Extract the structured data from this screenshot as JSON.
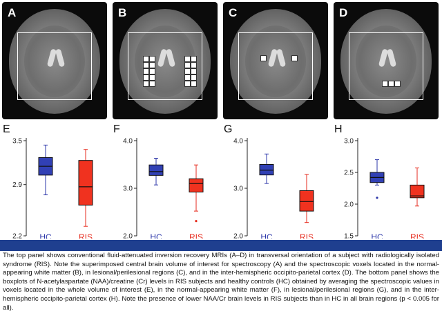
{
  "mri_panels": [
    {
      "letter": "A",
      "type": "volume"
    },
    {
      "letter": "B",
      "type": "white-matter"
    },
    {
      "letter": "C",
      "type": "lesional"
    },
    {
      "letter": "D",
      "type": "occipito-parietal"
    }
  ],
  "colors": {
    "hc": "#2b35a8",
    "ris": "#e62a1c",
    "bar": "#1f3f8f"
  },
  "chart_data": [
    {
      "type": "box",
      "panel": "E",
      "categories": [
        "HC",
        "RIS"
      ],
      "yticks": [
        "3.5",
        "2.9",
        "2.2"
      ],
      "ylim": [
        2.2,
        3.5
      ],
      "series": [
        {
          "name": "HC",
          "whisker_low": 2.76,
          "q1": 3.03,
          "median": 3.15,
          "q3": 3.27,
          "whisker_high": 3.44,
          "outliers": []
        },
        {
          "name": "RIS",
          "whisker_low": 2.33,
          "q1": 2.62,
          "median": 2.87,
          "q3": 3.23,
          "whisker_high": 3.38,
          "outliers": []
        }
      ]
    },
    {
      "type": "box",
      "panel": "F",
      "categories": [
        "HC",
        "RIS"
      ],
      "yticks": [
        "4.0",
        "3.0",
        "2.0"
      ],
      "ylim": [
        2.0,
        4.0
      ],
      "series": [
        {
          "name": "HC",
          "whisker_low": 3.07,
          "q1": 3.27,
          "median": 3.35,
          "q3": 3.49,
          "whisker_high": 3.63,
          "outliers": []
        },
        {
          "name": "RIS",
          "whisker_low": 2.52,
          "q1": 2.92,
          "median": 3.1,
          "q3": 3.2,
          "whisker_high": 3.49,
          "outliers": [
            2.31
          ]
        }
      ]
    },
    {
      "type": "box",
      "panel": "G",
      "categories": [
        "HC",
        "RIS"
      ],
      "yticks": [
        "4.0",
        "3.0",
        "2.0"
      ],
      "ylim": [
        2.0,
        4.0
      ],
      "series": [
        {
          "name": "HC",
          "whisker_low": 3.1,
          "q1": 3.28,
          "median": 3.38,
          "q3": 3.5,
          "whisker_high": 3.72,
          "outliers": []
        },
        {
          "name": "RIS",
          "whisker_low": 2.28,
          "q1": 2.52,
          "median": 2.72,
          "q3": 2.95,
          "whisker_high": 3.29,
          "outliers": []
        }
      ]
    },
    {
      "type": "box",
      "panel": "H",
      "categories": [
        "HC",
        "RIS"
      ],
      "yticks": [
        "3.0",
        "2.5",
        "2.0",
        "1.5"
      ],
      "ylim": [
        1.5,
        3.0
      ],
      "series": [
        {
          "name": "HC",
          "whisker_low": 2.3,
          "q1": 2.34,
          "median": 2.42,
          "q3": 2.5,
          "whisker_high": 2.7,
          "outliers": [
            2.1
          ]
        },
        {
          "name": "RIS",
          "whisker_low": 1.97,
          "q1": 2.1,
          "median": 2.13,
          "q3": 2.3,
          "whisker_high": 2.57,
          "outliers": []
        }
      ]
    }
  ],
  "caption": "The top panel shows conventional fluid-attenuated inversion recovery MRIs (A–D) in transversal orientation of a subject with radiologically isolated syndrome (RIS). Note the superimposed central brain volume of interest for spectroscopy (A) and the spectroscopic voxels located in the normal-appearing white matter (B), in lesional/perilesional regions (C), and in the inter-hemispheric occipito-parietal cortex (D). The bottom panel shows the boxplots of N-acetylaspartate (NAA)/creatine (Cr) levels in RIS subjects and healthy controls (HC) obtained by averaging the spectroscopic values in voxels located in the whole volume of interest (E), in the normal-appearing white matter (F), in lesional/perilesional regions (G), and in the inter-hemispheric occipito-parietal cortex (H). Note the presence of lower NAA/Cr brain levels in RIS subjects than in HC in all brain regions (p < 0.005 for all)."
}
